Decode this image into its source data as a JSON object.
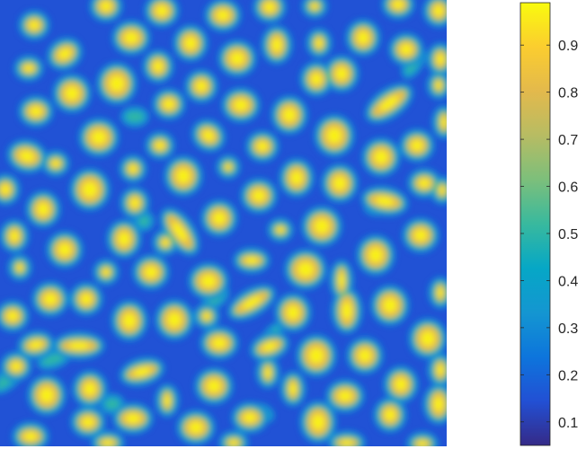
{
  "chart_data": {
    "type": "heatmap",
    "title": "",
    "xlabel": "",
    "ylabel": "",
    "axes_visible": false,
    "colormap": "parula",
    "colormap_stops": [
      "#352a87",
      "#2250d4",
      "#0d75dc",
      "#1496d1",
      "#06a7c6",
      "#38b99e",
      "#7cbf7b",
      "#b7bc63",
      "#e3b94c",
      "#fbcd2f",
      "#f9fb0e"
    ],
    "value_range": [
      0.05,
      0.99
    ],
    "background_value": 0.15,
    "pattern": "spots",
    "colorbar": {
      "location": "right",
      "ticks": [
        0.1,
        0.2,
        0.3,
        0.4,
        0.5,
        0.6,
        0.7,
        0.8,
        0.9
      ],
      "tick_labels": [
        "0.1",
        "0.2",
        "0.3",
        "0.4",
        "0.5",
        "0.6",
        "0.7",
        "0.8",
        "0.9"
      ]
    }
  }
}
